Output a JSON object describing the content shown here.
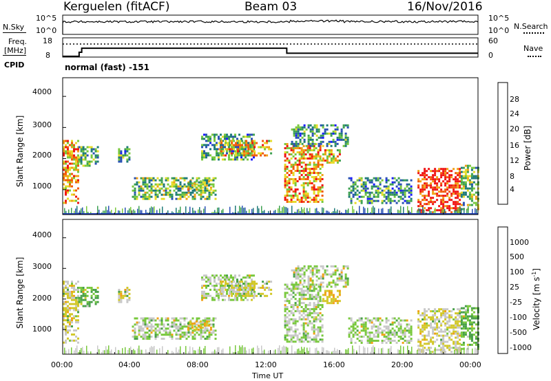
{
  "header": {
    "station": "Kerguelen (fitACF)",
    "beam": "Beam 03",
    "date": "16/Nov/2016"
  },
  "noise_panel": {
    "left_label": "N.Sky",
    "right_label": "N.Search",
    "left_ticks": [
      "10^5",
      "10^0"
    ],
    "right_ticks": [
      "10^5",
      "10^0"
    ]
  },
  "freq_panel": {
    "left_label_1": "Freq.",
    "left_label_2": "[MHz]",
    "right_label": "Nave",
    "left_ticks": [
      "18",
      "8"
    ],
    "right_ticks": [
      "60",
      "0"
    ],
    "freq_steps": [
      {
        "t": 0.0,
        "mhz": 8.4
      },
      {
        "t": 0.95,
        "mhz": 10.5
      },
      {
        "t": 1.1,
        "mhz": 12.6
      },
      {
        "t": 12.95,
        "mhz": 10.0
      },
      {
        "t": 24.0,
        "mhz": 10.0
      }
    ],
    "nave_level": 0.68
  },
  "cpid": {
    "label": "CPID",
    "value": "normal (fast) -151"
  },
  "power_panel": {
    "ylabel": "Slant Range [km]",
    "yticks": [
      "4000",
      "3000",
      "2000",
      "1000"
    ],
    "colorbar_label": "Power [dB]",
    "colorbar_ticks": [
      "28",
      "24",
      "20",
      "16",
      "12",
      "8",
      "4"
    ],
    "colors": [
      "#1a1aff",
      "#2850b4",
      "#1e7a78",
      "#3ca050",
      "#78c83c",
      "#e6dc28",
      "#f0a014",
      "#f05a0a",
      "#f01414"
    ]
  },
  "velocity_panel": {
    "ylabel": "Slant Range [km]",
    "yticks": [
      "4000",
      "3000",
      "2000",
      "1000"
    ],
    "colorbar_label": "Velocity [m s^-1]",
    "colorbar_ticks": [
      "1000",
      "500",
      "100",
      "25",
      "-25",
      "-100",
      "-500",
      "-1000"
    ],
    "colors": [
      "#2040c8",
      "#2a7a9a",
      "#48a048",
      "#78c83c",
      "#c8c8c8",
      "#d2c828",
      "#f0a014",
      "#f06414",
      "#f01414"
    ]
  },
  "x_axis": {
    "ticks": [
      "00:00",
      "04:00",
      "08:00",
      "12:00",
      "16:00",
      "20:00",
      "00:00"
    ],
    "label": "Time UT"
  },
  "chart_data": {
    "type": "heatmap",
    "panels": [
      "Power [dB]",
      "Velocity [m s^-1]"
    ],
    "x_range_hours": [
      0,
      24
    ],
    "y_range_km": [
      200,
      4600
    ],
    "power_scale_db": [
      0,
      30
    ],
    "velocity_scale": [
      -1000,
      1000
    ],
    "echo_regions": [
      {
        "t0": 0.0,
        "t1": 0.9,
        "r0": 600,
        "r1": 2600,
        "power": 22,
        "velocity": -25
      },
      {
        "t0": 0.9,
        "t1": 2.0,
        "r0": 1800,
        "r1": 2400,
        "power": 12,
        "velocity": 100
      },
      {
        "t0": 3.2,
        "t1": 3.9,
        "r0": 1900,
        "r1": 2400,
        "power": 10,
        "velocity": -25
      },
      {
        "t0": 4.0,
        "t1": 8.8,
        "r0": 700,
        "r1": 1400,
        "power": 14,
        "velocity": 25
      },
      {
        "t0": 7.2,
        "t1": 8.6,
        "r0": 1000,
        "r1": 1300,
        "power": 16,
        "velocity": -100
      },
      {
        "t0": 8.0,
        "t1": 11.0,
        "r0": 2000,
        "r1": 2800,
        "power": 10,
        "velocity": 25
      },
      {
        "t0": 9.0,
        "t1": 12.0,
        "r0": 2100,
        "r1": 2600,
        "power": 20,
        "velocity": -25
      },
      {
        "t0": 12.8,
        "t1": 15.0,
        "r0": 600,
        "r1": 2500,
        "power": 22,
        "velocity": 25
      },
      {
        "t0": 13.2,
        "t1": 16.5,
        "r0": 2400,
        "r1": 3100,
        "power": 10,
        "velocity": 25
      },
      {
        "t0": 15.0,
        "t1": 16.0,
        "r0": 1900,
        "r1": 2300,
        "power": 20,
        "velocity": -100
      },
      {
        "t0": 16.5,
        "t1": 20.2,
        "r0": 600,
        "r1": 1400,
        "power": 10,
        "velocity": 25
      },
      {
        "t0": 20.5,
        "t1": 23.0,
        "r0": 250,
        "r1": 1700,
        "power": 28,
        "velocity": -25
      },
      {
        "t0": 23.0,
        "t1": 24.0,
        "r0": 400,
        "r1": 1800,
        "power": 14,
        "velocity": 100
      }
    ]
  }
}
